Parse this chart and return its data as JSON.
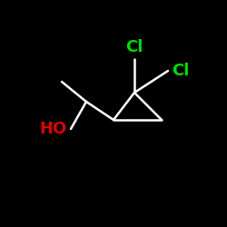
{
  "background_color": "#000000",
  "bond_color": "#ffffff",
  "bond_width": 1.8,
  "Cl1_label": "Cl",
  "Cl2_label": "Cl",
  "OH_label": "HO",
  "label_color_Cl": "#00dd00",
  "label_color_OH": "#dd0000",
  "label_fontsize": 13,
  "figsize": [
    2.5,
    2.5
  ],
  "dpi": 100,
  "xlim": [
    0,
    250
  ],
  "ylim": [
    0,
    250
  ]
}
